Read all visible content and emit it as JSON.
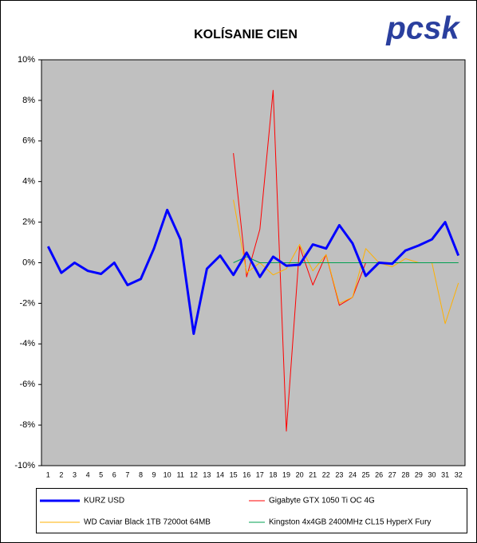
{
  "chart_data": {
    "type": "line",
    "title": "KOLÍSANIE CIEN",
    "logo": "pcsk",
    "categories": [
      "1",
      "2",
      "3",
      "4",
      "5",
      "6",
      "7",
      "8",
      "9",
      "10",
      "11",
      "12",
      "13",
      "14",
      "15",
      "16",
      "17",
      "18",
      "19",
      "20",
      "21",
      "22",
      "23",
      "24",
      "25",
      "26",
      "27",
      "28",
      "29",
      "30",
      "31",
      "32"
    ],
    "series": [
      {
        "name": "KURZ USD",
        "color": "#0000ff",
        "width": 3,
        "values": [
          0.8,
          -0.5,
          0,
          -0.4,
          -0.55,
          0,
          -1.1,
          -0.8,
          0.7,
          2.6,
          1.15,
          -3.5,
          -0.3,
          0.35,
          -0.6,
          0.5,
          -0.7,
          0.3,
          -0.15,
          -0.1,
          0.9,
          0.7,
          1.85,
          0.95,
          -0.65,
          0,
          -0.05,
          0.6,
          0.85,
          1.15,
          2,
          0.35
        ]
      },
      {
        "name": "Gigabyte GTX 1050 Ti OC 4G",
        "color": "#ff0000",
        "width": 1,
        "values": [
          null,
          null,
          null,
          null,
          null,
          null,
          null,
          null,
          null,
          null,
          null,
          null,
          null,
          null,
          5.4,
          -0.7,
          1.65,
          8.5,
          -8.3,
          0.8,
          -1.1,
          0.4,
          -2.1,
          -1.7,
          0,
          0,
          0,
          0,
          0,
          0,
          0,
          0
        ]
      },
      {
        "name": "WD Caviar Black 1TB 7200ot 64MB",
        "color": "#ffb000",
        "width": 1,
        "values": [
          null,
          null,
          null,
          null,
          null,
          null,
          null,
          null,
          null,
          null,
          null,
          null,
          null,
          null,
          3.1,
          -0.5,
          0,
          -0.6,
          -0.3,
          0.9,
          -0.4,
          0.4,
          -2,
          -1.7,
          0.7,
          0,
          -0.2,
          0.2,
          0,
          0,
          -3,
          -1
        ]
      },
      {
        "name": "Kingston 4x4GB 2400MHz CL15 HyperX Fury",
        "color": "#00a050",
        "width": 1,
        "values": [
          null,
          null,
          null,
          null,
          null,
          null,
          null,
          null,
          null,
          null,
          null,
          null,
          null,
          null,
          0,
          0.3,
          0,
          0,
          0,
          0,
          0,
          0,
          0,
          0,
          0,
          0,
          0,
          0,
          0,
          0,
          0,
          0
        ]
      }
    ],
    "ylim": [
      -10,
      10
    ],
    "yticks": [
      {
        "value": -10,
        "label": "-10%"
      },
      {
        "value": -8,
        "label": "-8%"
      },
      {
        "value": -6,
        "label": "-6%"
      },
      {
        "value": -4,
        "label": "-4%"
      },
      {
        "value": -2,
        "label": "-2%"
      },
      {
        "value": 0,
        "label": "0%"
      },
      {
        "value": 2,
        "label": "2%"
      },
      {
        "value": 4,
        "label": "4%"
      },
      {
        "value": 6,
        "label": "6%"
      },
      {
        "value": 8,
        "label": "8%"
      },
      {
        "value": 10,
        "label": "10%"
      }
    ],
    "plot_background": "#c0c0c0"
  }
}
